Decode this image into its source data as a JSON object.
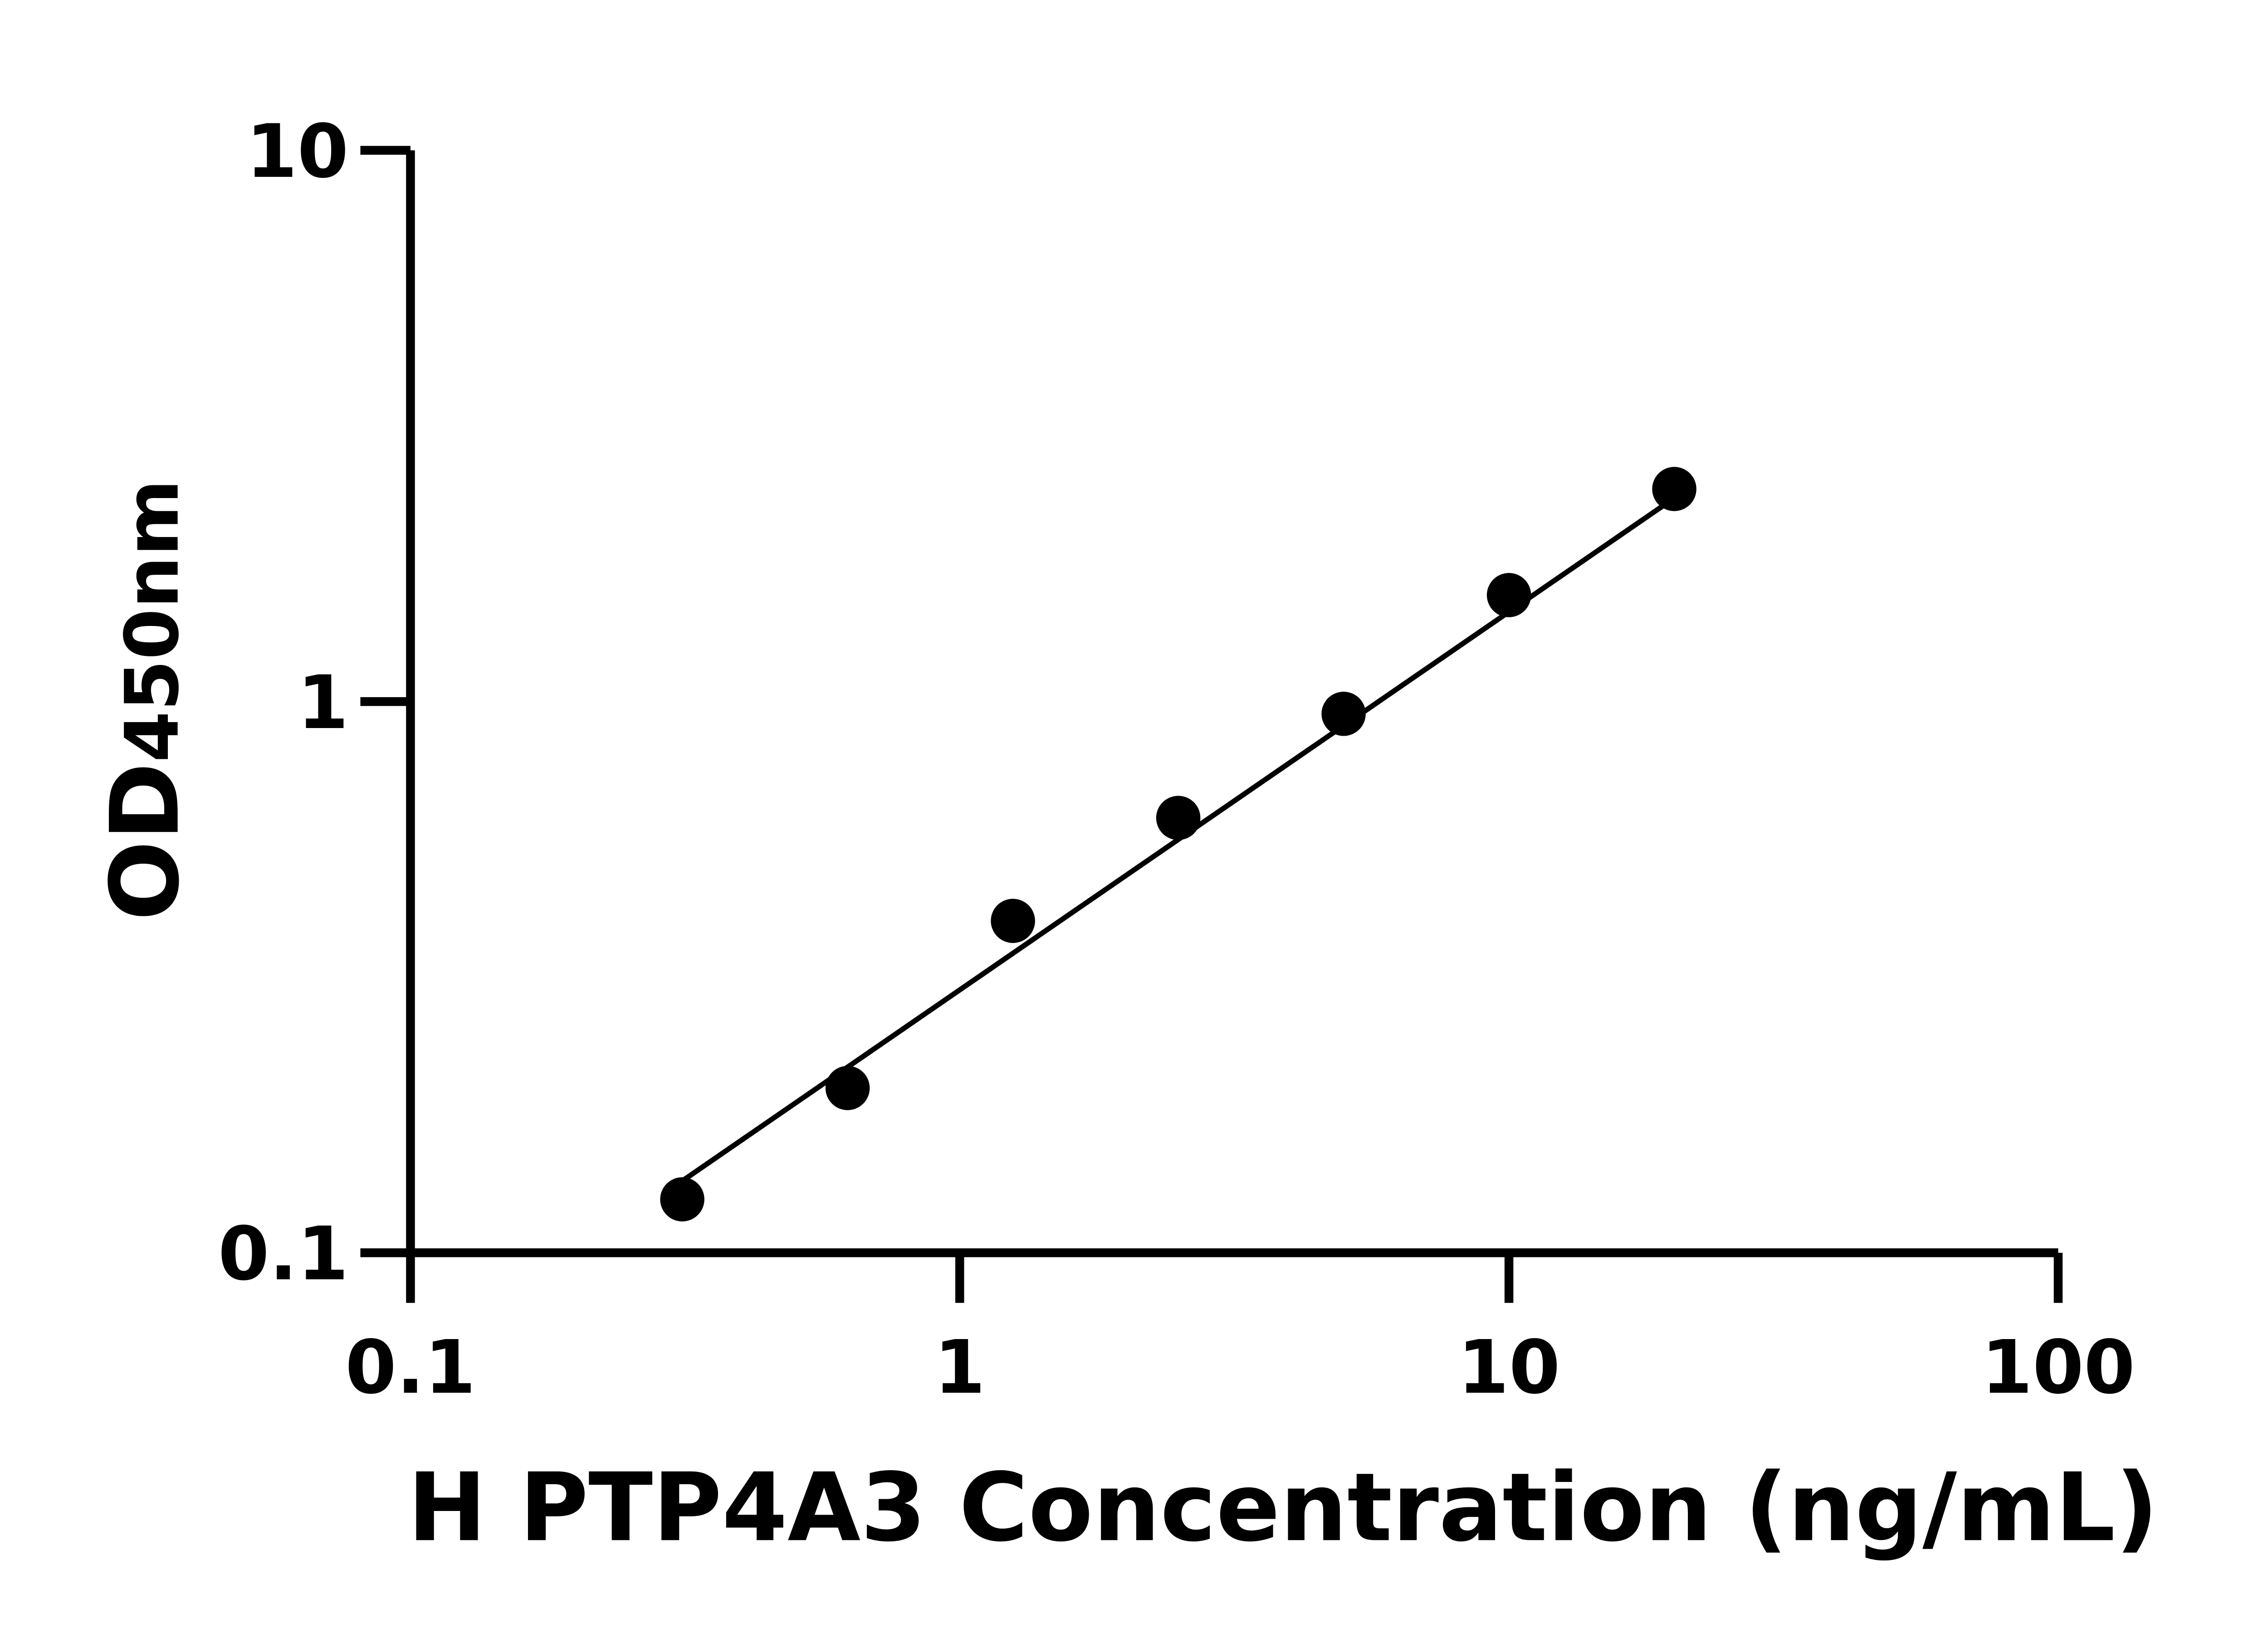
{
  "chart_data": {
    "type": "scatter",
    "title": "",
    "xlabel": "H PTP4A3 Concentration (ng/mL)",
    "ylabel_main": "OD",
    "ylabel_sub": "450nm",
    "x_scale": "log",
    "y_scale": "log",
    "xlim": [
      0.1,
      100
    ],
    "ylim": [
      0.1,
      10
    ],
    "x_ticks": [
      "0.1",
      "1",
      "10",
      "100"
    ],
    "x_tick_values": [
      0.1,
      1,
      10,
      100
    ],
    "y_ticks": [
      "0.1",
      "1",
      "10"
    ],
    "y_tick_values": [
      0.1,
      1,
      10
    ],
    "grid": false,
    "legend": "none",
    "series": [
      {
        "x": [
          0.3125,
          0.625,
          1.25,
          2.5,
          5,
          10,
          20
        ],
        "y": [
          0.125,
          0.199,
          0.4,
          0.615,
          0.95,
          1.56,
          2.43
        ],
        "color": "#000000"
      }
    ],
    "fit_line": {
      "x": [
        0.3125,
        20
      ],
      "y": [
        0.135,
        2.34
      ],
      "color": "#000000"
    }
  }
}
